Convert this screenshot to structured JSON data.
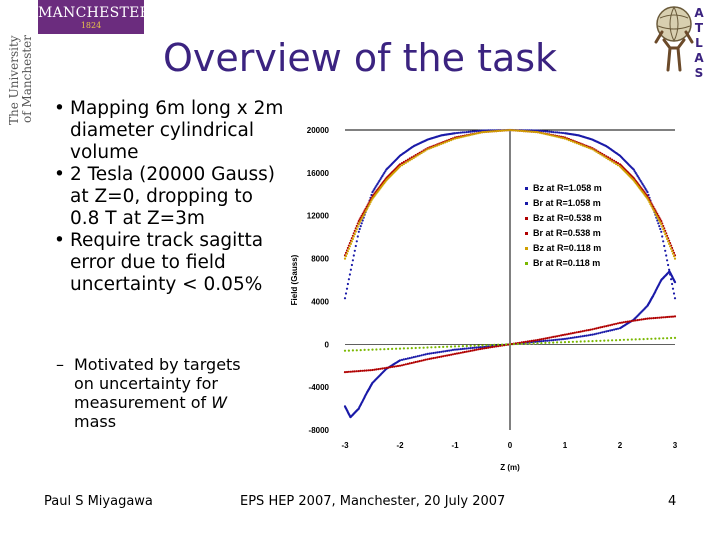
{
  "header": {
    "logo_name": "MANCHESTER",
    "logo_year": "1824",
    "university_line1": "The University",
    "university_line2": "of Manchester",
    "atlas_letters": [
      "A",
      "T",
      "L",
      "A",
      "S"
    ]
  },
  "title": "Overview of the task",
  "bullets": [
    {
      "text": "Mapping 6m long x 2m diameter cylindrical volume"
    },
    {
      "text": "2 Tesla (20000 Gauss) at Z=0, dropping to 0.8 T at Z=3m"
    },
    {
      "text": "Require track sagitta error due to field uncertainty < 0.05%"
    }
  ],
  "sub_bullet": {
    "text_before": "Motivated by targets on uncertainty for measurement of ",
    "italic": "W",
    "text_after": " mass"
  },
  "footer": {
    "author": "Paul S Miyagawa",
    "event": "EPS HEP 2007, Manchester, 20 July 2007",
    "page": "4"
  },
  "colors": {
    "title": "#3b2380",
    "logo_bg": "#6b2c7e"
  },
  "chart_data": {
    "type": "scatter",
    "xlabel": "Z (m)",
    "ylabel": "Field (Gauss)",
    "xlim": [
      -3,
      3
    ],
    "ylim": [
      -8000,
      20000
    ],
    "xticks": [
      "-3",
      "-2",
      "-1",
      "0",
      "1",
      "2",
      "3"
    ],
    "yticks": [
      "20000",
      "16000",
      "12000",
      "8000",
      "4000",
      "0",
      "-4000",
      "-8000"
    ],
    "legend_position": "right",
    "series": [
      {
        "name": "Bz at R=1.058 m",
        "color": "#1a1aa8",
        "x": [
          -3,
          -2.75,
          -2.5,
          -2.25,
          -2,
          -1.75,
          -1.5,
          -1.25,
          -1,
          -0.5,
          0,
          0.5,
          1,
          1.25,
          1.5,
          1.75,
          2,
          2.25,
          2.5,
          2.75,
          3
        ],
        "y": [
          4300,
          10500,
          14200,
          16300,
          17600,
          18500,
          19100,
          19500,
          19700,
          19950,
          20000,
          19950,
          19700,
          19500,
          19100,
          18500,
          17600,
          16300,
          14200,
          10500,
          4300
        ]
      },
      {
        "name": "Br at R=1.058 m",
        "color": "#1a1aa8",
        "x": [
          -3,
          -2.9,
          -2.75,
          -2.6,
          -2.5,
          -2.25,
          -2,
          -1.5,
          -1,
          -0.5,
          0,
          0.5,
          1,
          1.5,
          2,
          2.25,
          2.5,
          2.6,
          2.75,
          2.9,
          3
        ],
        "y": [
          -5800,
          -6800,
          -6000,
          -4500,
          -3600,
          -2300,
          -1500,
          -900,
          -500,
          -250,
          0,
          250,
          500,
          900,
          1500,
          2300,
          3600,
          4500,
          6000,
          6800,
          5800
        ]
      },
      {
        "name": "Bz at R=0.538 m",
        "color": "#b00000",
        "x": [
          -3,
          -2.75,
          -2.5,
          -2.25,
          -2,
          -1.5,
          -1,
          -0.5,
          0,
          0.5,
          1,
          1.5,
          2,
          2.25,
          2.5,
          2.75,
          3
        ],
        "y": [
          8300,
          11500,
          13800,
          15500,
          16800,
          18300,
          19300,
          19800,
          20000,
          19800,
          19300,
          18300,
          16800,
          15500,
          13800,
          11500,
          8300
        ]
      },
      {
        "name": "Br at R=0.538 m",
        "color": "#b00000",
        "x": [
          -3,
          -2.5,
          -2,
          -1.5,
          -1,
          -0.5,
          0,
          0.5,
          1,
          1.5,
          2,
          2.5,
          3
        ],
        "y": [
          -2600,
          -2400,
          -2000,
          -1400,
          -900,
          -400,
          0,
          400,
          900,
          1400,
          2000,
          2400,
          2600
        ]
      },
      {
        "name": "Bz at R=0.118 m",
        "color": "#d0a000",
        "x": [
          -3,
          -2.75,
          -2.5,
          -2.25,
          -2,
          -1.5,
          -1,
          -0.5,
          0,
          0.5,
          1,
          1.5,
          2,
          2.25,
          2.5,
          2.75,
          3
        ],
        "y": [
          8000,
          11200,
          13600,
          15300,
          16600,
          18200,
          19200,
          19800,
          20000,
          19800,
          19200,
          18200,
          16600,
          15300,
          13600,
          11200,
          8000
        ]
      },
      {
        "name": "Br at R=0.118 m",
        "color": "#7ab800",
        "x": [
          -3,
          -2,
          -1,
          0,
          1,
          2,
          3
        ],
        "y": [
          -600,
          -400,
          -200,
          0,
          200,
          400,
          600
        ]
      }
    ]
  }
}
